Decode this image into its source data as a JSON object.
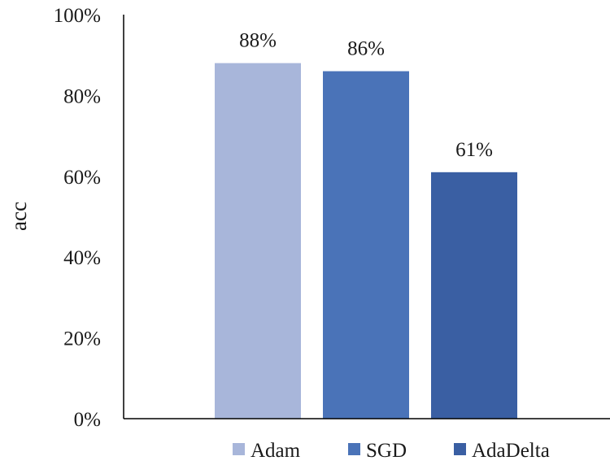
{
  "chart_data": {
    "type": "bar",
    "title": "",
    "xlabel": "",
    "ylabel": "acc",
    "ylim": [
      0,
      1
    ],
    "yticks": [
      0,
      0.2,
      0.4,
      0.6,
      0.8,
      1.0
    ],
    "ytick_labels": [
      "0%",
      "20%",
      "40%",
      "60%",
      "80%",
      "100%"
    ],
    "categories": [
      "Adam",
      "SGD",
      "AdaDelta"
    ],
    "values": [
      0.88,
      0.86,
      0.61
    ],
    "data_labels": [
      "88%",
      "86%",
      "61%"
    ],
    "colors": [
      "#a8b6da",
      "#4a73b8",
      "#3a5fa3"
    ],
    "grid": false,
    "legend": {
      "position": "bottom",
      "entries": [
        "Adam",
        "SGD",
        "AdaDelta"
      ]
    }
  }
}
